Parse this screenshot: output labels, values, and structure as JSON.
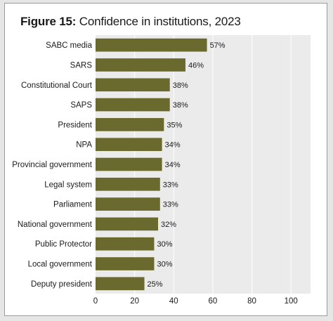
{
  "figure": {
    "number_label": "Figure 15:",
    "title_text": "Confidence in institutions, 2023"
  },
  "chart_data": {
    "type": "bar",
    "orientation": "horizontal",
    "title": "Figure 15: Confidence in institutions, 2023",
    "categories": [
      "SABC media",
      "SARS",
      "Constitutional Court",
      "SAPS",
      "President",
      "NPA",
      "Provincial government",
      "Legal system",
      "Parliament",
      "National government",
      "Public Protector",
      "Local government",
      "Deputy president"
    ],
    "values": [
      57,
      46,
      38,
      38,
      35,
      34,
      34,
      33,
      33,
      32,
      30,
      30,
      25
    ],
    "value_labels": [
      "57%",
      "46%",
      "38%",
      "38%",
      "35%",
      "34%",
      "34%",
      "33%",
      "33%",
      "32%",
      "30%",
      "30%",
      "25%"
    ],
    "xlim": [
      0,
      110
    ],
    "x_ticks": [
      0,
      20,
      40,
      60,
      80,
      100
    ],
    "x_tick_labels": [
      "0",
      "20",
      "40",
      "60",
      "80",
      "100"
    ],
    "xlabel": "",
    "ylabel": "",
    "grid": true,
    "legend": "none",
    "colors": {
      "bar": "#6b6a2e",
      "plot_background": "#ebebeb",
      "gridline": "#ffffff"
    }
  }
}
